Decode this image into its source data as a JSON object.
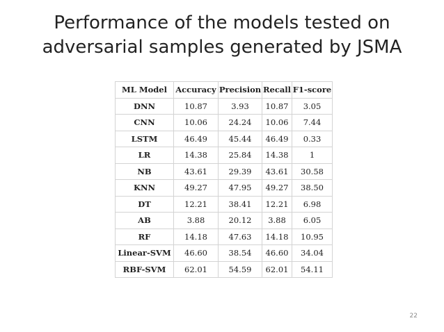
{
  "slide": {
    "title_line1": "Performance of the models tested on",
    "title_line2": "adversarial samples generated by JSMA",
    "page_number": "22"
  },
  "table": {
    "headers": [
      "ML Model",
      "Accuracy",
      "Precision",
      "Recall",
      "F1-score"
    ],
    "rows": [
      [
        "DNN",
        "10.87",
        "3.93",
        "10.87",
        "3.05"
      ],
      [
        "CNN",
        "10.06",
        "24.24",
        "10.06",
        "7.44"
      ],
      [
        "LSTM",
        "46.49",
        "45.44",
        "46.49",
        "0.33"
      ],
      [
        "LR",
        "14.38",
        "25.84",
        "14.38",
        "1"
      ],
      [
        "NB",
        "43.61",
        "29.39",
        "43.61",
        "30.58"
      ],
      [
        "KNN",
        "49.27",
        "47.95",
        "49.27",
        "38.50"
      ],
      [
        "DT",
        "12.21",
        "38.41",
        "12.21",
        "6.98"
      ],
      [
        "AB",
        "3.88",
        "20.12",
        "3.88",
        "6.05"
      ],
      [
        "RF",
        "14.18",
        "47.63",
        "14.18",
        "10.95"
      ],
      [
        "Linear-SVM",
        "46.60",
        "38.54",
        "46.60",
        "34.04"
      ],
      [
        "RBF-SVM",
        "62.01",
        "54.59",
        "62.01",
        "54.11"
      ]
    ]
  }
}
